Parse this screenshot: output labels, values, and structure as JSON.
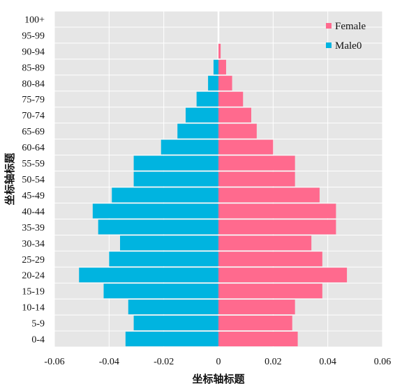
{
  "chart_data": {
    "type": "bar",
    "orientation": "horizontal",
    "stacking": "diverging",
    "categories": [
      "0-4",
      "5-9",
      "10-14",
      "15-19",
      "20-24",
      "25-29",
      "30-34",
      "35-39",
      "40-44",
      "45-49",
      "50-54",
      "55-59",
      "60-64",
      "65-69",
      "70-74",
      "75-79",
      "80-84",
      "85-89",
      "90-94",
      "95-99",
      "100+"
    ],
    "series": [
      {
        "name": "Male0",
        "color": "#00b4e0",
        "values": [
          -0.034,
          -0.031,
          -0.033,
          -0.042,
          -0.051,
          -0.04,
          -0.036,
          -0.044,
          -0.046,
          -0.039,
          -0.031,
          -0.031,
          -0.021,
          -0.015,
          -0.012,
          -0.008,
          -0.0038,
          -0.0018,
          0,
          0,
          0
        ]
      },
      {
        "name": "Female",
        "color": "#ff6a8e",
        "values": [
          0.029,
          0.027,
          0.028,
          0.038,
          0.047,
          0.038,
          0.034,
          0.043,
          0.043,
          0.037,
          0.028,
          0.028,
          0.02,
          0.014,
          0.012,
          0.009,
          0.005,
          0.0028,
          0.0008,
          0,
          0
        ]
      }
    ],
    "xlabel": "坐标轴标题",
    "ylabel": "坐标轴标题",
    "xlim": [
      -0.06,
      0.06
    ],
    "xticks": [
      -0.06,
      -0.04,
      -0.02,
      0,
      0.02,
      0.04,
      0.06
    ],
    "xtick_labels": [
      "-0.06",
      "-0.04",
      "-0.02",
      "0",
      "0.02",
      "0.04",
      "0.06"
    ],
    "grid": true,
    "legend_position": "top-right",
    "plot_background": "#e6e6e6"
  }
}
